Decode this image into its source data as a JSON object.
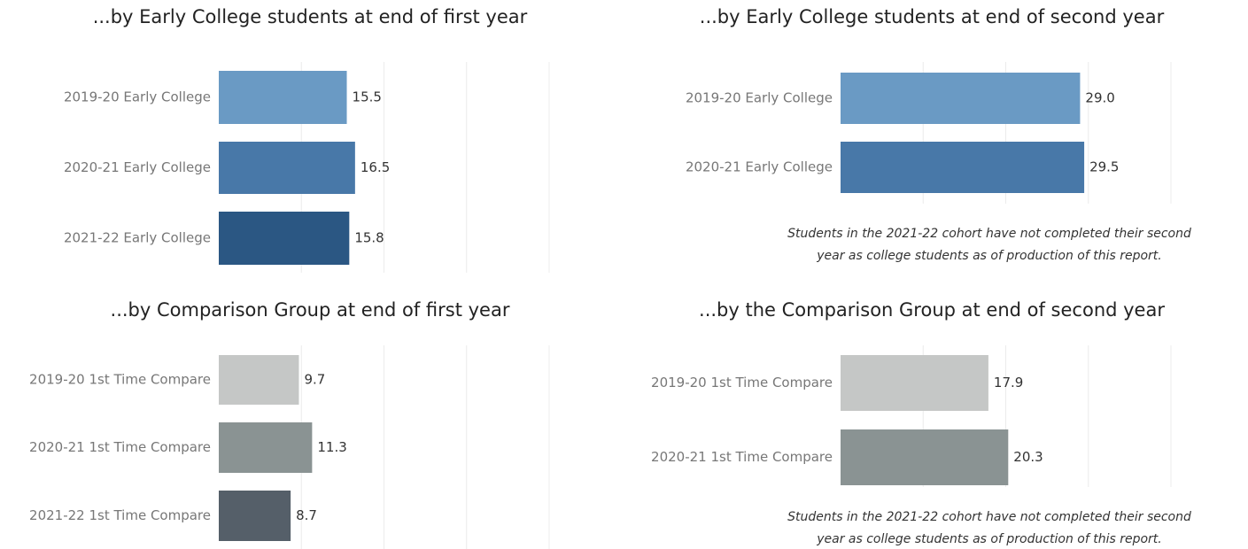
{
  "chart_data": [
    {
      "type": "bar",
      "title": "...by Early College students at end of first year",
      "categories": [
        "2019-20 Early College",
        "2020-21 Early College",
        "2021-22 Early College"
      ],
      "values": [
        15.5,
        16.5,
        15.8
      ],
      "value_labels": [
        "15.5",
        "16.5",
        "15.8"
      ],
      "colors": [
        "#6a9ac4",
        "#4878a8",
        "#2b5783"
      ],
      "xlim": [
        0,
        40
      ],
      "xticks": [
        10,
        20,
        30,
        40
      ],
      "grid": true
    },
    {
      "type": "bar",
      "title": "...by Early College students at end of second year",
      "categories": [
        "2019-20 Early College",
        "2020-21 Early College"
      ],
      "values": [
        29.0,
        29.5
      ],
      "value_labels": [
        "29.0",
        "29.5"
      ],
      "colors": [
        "#6a9ac4",
        "#4878a8"
      ],
      "xlim": [
        0,
        40
      ],
      "xticks": [
        10,
        20,
        30,
        40
      ],
      "grid": true,
      "note": [
        "Students in the 2021-22 cohort have not completed their second",
        "year as college students as of production of this report."
      ]
    },
    {
      "type": "bar",
      "title": "...by Comparison Group at end of first year",
      "categories": [
        "2019-20 1st Time Compare",
        "2020-21 1st Time Compare",
        "2021-22 1st Time Compare"
      ],
      "values": [
        9.7,
        11.3,
        8.7
      ],
      "value_labels": [
        "9.7",
        "11.3",
        "8.7"
      ],
      "colors": [
        "#c5c7c6",
        "#8a9393",
        "#555f69"
      ],
      "xlim": [
        0,
        40
      ],
      "xticks": [
        10,
        20,
        30,
        40
      ],
      "grid": true
    },
    {
      "type": "bar",
      "title": "...by the Comparison Group at end of second year",
      "categories": [
        "2019-20 1st Time Compare",
        "2020-21 1st Time Compare"
      ],
      "values": [
        17.9,
        20.3
      ],
      "value_labels": [
        "17.9",
        "20.3"
      ],
      "colors": [
        "#c5c7c6",
        "#8a9393"
      ],
      "xlim": [
        0,
        40
      ],
      "xticks": [
        10,
        20,
        30,
        40
      ],
      "grid": true,
      "note": [
        "Students in the 2021-22 cohort have not completed their second",
        "year as college students as of production of this report."
      ]
    }
  ]
}
